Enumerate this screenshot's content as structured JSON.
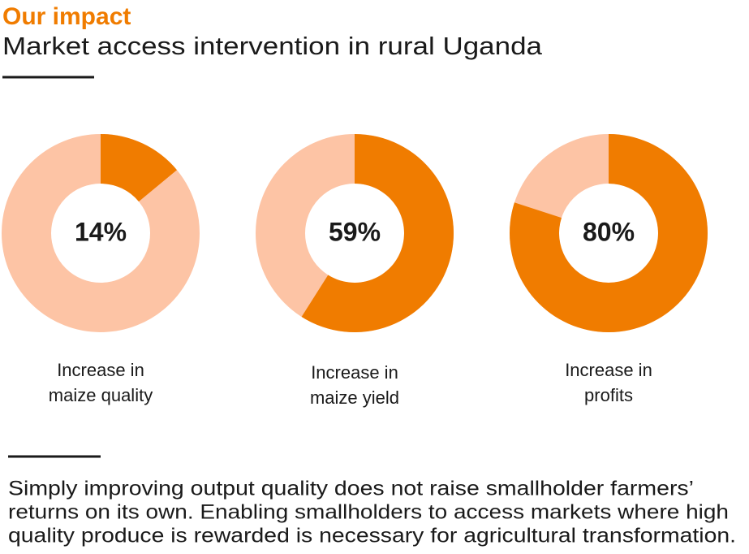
{
  "title": "Our impact",
  "subtitle": "Market access intervention in rural Uganda",
  "chart_data": [
    {
      "type": "donut",
      "values": [
        14
      ],
      "value_labels": [
        "14%"
      ],
      "color": "#f07c00",
      "track_color": "#fdc4a5",
      "label_lines": [
        "Increase in",
        "maize quality"
      ]
    },
    {
      "type": "donut",
      "values": [
        59
      ],
      "value_labels": [
        "59%"
      ],
      "color": "#f07c00",
      "track_color": "#fdc4a5",
      "label_lines": [
        "Increase in",
        "maize yield"
      ]
    },
    {
      "type": "donut",
      "values": [
        80
      ],
      "value_labels": [
        "80%"
      ],
      "color": "#f07c00",
      "track_color": "#fdc4a5",
      "label_lines": [
        "Increase in",
        "profits"
      ]
    }
  ],
  "footnote_lines": [
    "Simply improving output quality does not raise smallholder farmers’",
    "returns on its own. Enabling smallholders to access markets where high",
    "quality produce is rewarded is necessary for agricultural transformation."
  ]
}
